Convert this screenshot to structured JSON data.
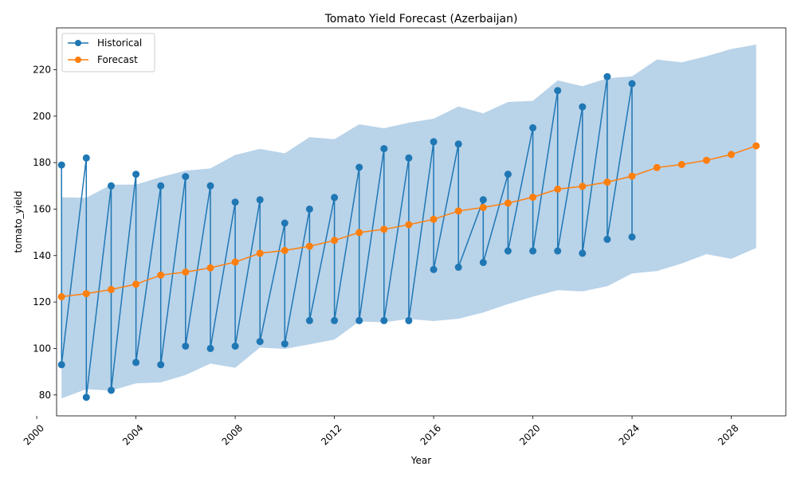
{
  "chart_data": {
    "type": "line",
    "title": "Tomato Yield Forecast (Azerbaijan)",
    "xlabel": "Year",
    "ylabel": "tomato_yield",
    "xlim": [
      2000.8,
      2030.2
    ],
    "ylim": [
      71,
      238
    ],
    "xticks": [
      "2000",
      "2004",
      "2008",
      "2012",
      "2016",
      "2020",
      "2024",
      "2028"
    ],
    "yticks": [
      "80",
      "100",
      "120",
      "140",
      "160",
      "180",
      "200",
      "220"
    ],
    "legend_position": "top-left",
    "colors": {
      "historical": "#1f77b4",
      "forecast": "#ff7f0e",
      "band": "#b9d3e9"
    },
    "series": [
      {
        "name": "Historical",
        "x": [
          2001,
          2001,
          2002,
          2002,
          2003,
          2003,
          2004,
          2004,
          2005,
          2005,
          2006,
          2006,
          2007,
          2007,
          2008,
          2008,
          2009,
          2009,
          2010,
          2010,
          2011,
          2011,
          2012,
          2012,
          2013,
          2013,
          2014,
          2014,
          2015,
          2015,
          2016,
          2016,
          2017,
          2017,
          2018,
          2018,
          2019,
          2019,
          2020,
          2020,
          2021,
          2021,
          2022,
          2022,
          2023,
          2023,
          2024,
          2024
        ],
        "y": [
          179,
          93,
          182,
          79,
          170,
          82,
          175,
          94,
          170,
          93,
          174,
          101,
          170,
          100,
          163,
          101,
          164,
          103,
          154,
          102,
          160,
          112,
          165,
          112,
          178,
          112,
          186,
          112,
          182,
          112,
          189,
          134,
          188,
          135,
          164,
          137,
          175,
          142,
          195,
          142,
          211,
          142,
          204,
          141,
          217,
          147,
          214,
          148
        ]
      },
      {
        "name": "Forecast",
        "x": [
          2001,
          2002,
          2003,
          2004,
          2005,
          2006,
          2007,
          2008,
          2009,
          2010,
          2011,
          2012,
          2013,
          2014,
          2015,
          2016,
          2017,
          2018,
          2019,
          2020,
          2021,
          2022,
          2023,
          2024,
          2025,
          2026,
          2027,
          2028,
          2029
        ],
        "y": [
          122.3,
          123.6,
          125.4,
          127.7,
          131.6,
          132.9,
          134.7,
          137.2,
          141.0,
          142.2,
          144.0,
          146.5,
          149.9,
          151.3,
          153.3,
          155.6,
          159.2,
          160.7,
          162.6,
          165.1,
          168.6,
          169.8,
          171.6,
          174.2,
          177.9,
          179.2,
          181.0,
          183.5,
          187.2
        ]
      }
    ],
    "confidence_band": {
      "x": [
        2001,
        2002,
        2003,
        2004,
        2005,
        2006,
        2007,
        2008,
        2009,
        2010,
        2011,
        2012,
        2013,
        2014,
        2015,
        2016,
        2017,
        2018,
        2019,
        2020,
        2021,
        2022,
        2023,
        2024,
        2025,
        2026,
        2027,
        2028,
        2029
      ],
      "lower": [
        78.5,
        82.5,
        81.9,
        85.0,
        85.4,
        88.6,
        93.5,
        91.7,
        100.4,
        99.8,
        101.8,
        103.8,
        111.6,
        111.3,
        112.7,
        111.8,
        112.8,
        115.5,
        119.1,
        122.3,
        125.1,
        124.6,
        126.8,
        132.3,
        133.3,
        136.6,
        140.6,
        138.6,
        143.3
      ],
      "upper": [
        165.1,
        164.9,
        170.5,
        170.5,
        173.8,
        176.5,
        177.5,
        183.3,
        185.9,
        184.0,
        191.0,
        190.1,
        196.5,
        194.8,
        197.2,
        198.9,
        204.2,
        201.2,
        206.1,
        206.6,
        215.4,
        212.9,
        216.3,
        217.1,
        224.4,
        223.2,
        225.8,
        228.9,
        230.8
      ]
    }
  }
}
